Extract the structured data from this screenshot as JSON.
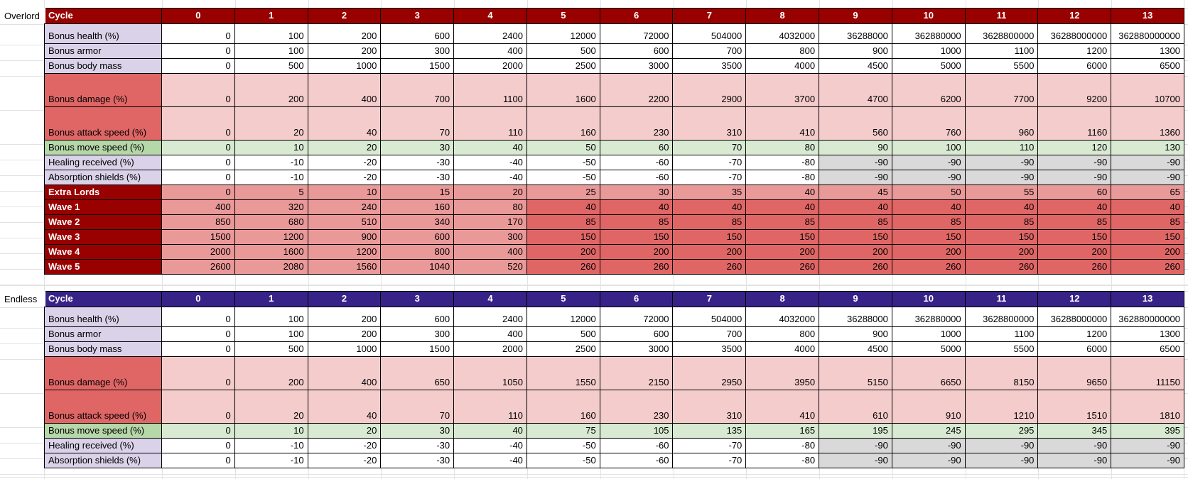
{
  "header_label": "Cycle",
  "cycles": [
    "0",
    "1",
    "2",
    "3",
    "4",
    "5",
    "6",
    "7",
    "8",
    "9",
    "10",
    "11",
    "12",
    "13"
  ],
  "colors": {
    "overlord_header": "#990000",
    "endless_header": "#372387",
    "label_lavender": "#d9d2e9",
    "label_red": "#e06666",
    "cell_pink": "#f4cccc",
    "label_green": "#b6d7a8",
    "cell_green": "#d9ead3",
    "cell_gray": "#d9d9d9",
    "label_dark_red": "#990000",
    "cell_wave": "#ea9999",
    "cell_wave_cap": "#e06666",
    "cell_white": "#ffffff",
    "gridline": "#e2e2e2"
  },
  "tables": [
    {
      "section": "Overlord",
      "theme": "red",
      "rows": [
        {
          "label": "Bonus health (%)",
          "type": "plain",
          "size": "medium",
          "values": [
            0,
            100,
            200,
            600,
            2400,
            12000,
            72000,
            504000,
            4032000,
            36288000,
            362880000,
            3628800000,
            36288000000,
            362880000000
          ]
        },
        {
          "label": "Bonus armor",
          "type": "plain",
          "size": "normal",
          "values": [
            0,
            100,
            200,
            300,
            400,
            500,
            600,
            700,
            800,
            900,
            1000,
            1100,
            1200,
            1300
          ]
        },
        {
          "label": "Bonus body mass",
          "type": "plain",
          "size": "normal",
          "values": [
            0,
            500,
            1000,
            1500,
            2000,
            2500,
            3000,
            3500,
            4000,
            4500,
            5000,
            5500,
            6000,
            6500
          ]
        },
        {
          "label": "Bonus damage (%)",
          "type": "red",
          "size": "tall",
          "values": [
            0,
            200,
            400,
            700,
            1100,
            1600,
            2200,
            2900,
            3700,
            4700,
            6200,
            7700,
            9200,
            10700
          ]
        },
        {
          "label": "Bonus attack speed (%)",
          "type": "red",
          "size": "tall",
          "values": [
            0,
            20,
            40,
            70,
            110,
            160,
            230,
            310,
            410,
            560,
            760,
            960,
            1160,
            1360
          ]
        },
        {
          "label": "Bonus move speed (%)",
          "type": "green",
          "size": "normal",
          "values": [
            0,
            10,
            20,
            30,
            40,
            50,
            60,
            70,
            80,
            90,
            100,
            110,
            120,
            130
          ]
        },
        {
          "label": "Healing received (%)",
          "type": "plain",
          "size": "normal",
          "gray_from": 9,
          "values": [
            0,
            -10,
            -20,
            -30,
            -40,
            -50,
            -60,
            -70,
            -80,
            -90,
            -90,
            -90,
            -90,
            -90
          ]
        },
        {
          "label": "Absorption shields (%)",
          "type": "plain",
          "size": "normal",
          "gray_from": 9,
          "values": [
            0,
            -10,
            -20,
            -30,
            -40,
            -50,
            -60,
            -70,
            -80,
            -90,
            -90,
            -90,
            -90,
            -90
          ]
        },
        {
          "label": "Extra Lords",
          "type": "lords",
          "size": "normal",
          "values": [
            0,
            5,
            10,
            15,
            20,
            25,
            30,
            35,
            40,
            45,
            50,
            55,
            60,
            65
          ]
        },
        {
          "label": "Wave 1",
          "type": "wave",
          "size": "normal",
          "cap_from": 5,
          "values": [
            400,
            320,
            240,
            160,
            80,
            40,
            40,
            40,
            40,
            40,
            40,
            40,
            40,
            40
          ]
        },
        {
          "label": "Wave 2",
          "type": "wave",
          "size": "normal",
          "cap_from": 5,
          "values": [
            850,
            680,
            510,
            340,
            170,
            85,
            85,
            85,
            85,
            85,
            85,
            85,
            85,
            85
          ]
        },
        {
          "label": "Wave 3",
          "type": "wave",
          "size": "normal",
          "cap_from": 5,
          "values": [
            1500,
            1200,
            900,
            600,
            300,
            150,
            150,
            150,
            150,
            150,
            150,
            150,
            150,
            150
          ]
        },
        {
          "label": "Wave 4",
          "type": "wave",
          "size": "normal",
          "cap_from": 5,
          "values": [
            2000,
            1600,
            1200,
            800,
            400,
            200,
            200,
            200,
            200,
            200,
            200,
            200,
            200,
            200
          ]
        },
        {
          "label": "Wave 5",
          "type": "wave",
          "size": "normal",
          "cap_from": 5,
          "values": [
            2600,
            2080,
            1560,
            1040,
            520,
            260,
            260,
            260,
            260,
            260,
            260,
            260,
            260,
            260
          ]
        }
      ]
    },
    {
      "section": "Endless",
      "theme": "purple",
      "rows": [
        {
          "label": "Bonus health (%)",
          "type": "plain",
          "size": "medium",
          "values": [
            0,
            100,
            200,
            600,
            2400,
            12000,
            72000,
            504000,
            4032000,
            36288000,
            362880000,
            3628800000,
            36288000000,
            362880000000
          ]
        },
        {
          "label": "Bonus armor",
          "type": "plain",
          "size": "normal",
          "values": [
            0,
            100,
            200,
            300,
            400,
            500,
            600,
            700,
            800,
            900,
            1000,
            1100,
            1200,
            1300
          ]
        },
        {
          "label": "Bonus body mass",
          "type": "plain",
          "size": "normal",
          "values": [
            0,
            500,
            1000,
            1500,
            2000,
            2500,
            3000,
            3500,
            4000,
            4500,
            5000,
            5500,
            6000,
            6500
          ]
        },
        {
          "label": "Bonus damage (%)",
          "type": "red",
          "size": "tall",
          "values": [
            0,
            200,
            400,
            650,
            1050,
            1550,
            2150,
            2950,
            3950,
            5150,
            6650,
            8150,
            9650,
            11150
          ]
        },
        {
          "label": "Bonus attack speed (%)",
          "type": "red",
          "size": "tall",
          "values": [
            0,
            20,
            40,
            70,
            110,
            160,
            230,
            310,
            410,
            610,
            910,
            1210,
            1510,
            1810
          ]
        },
        {
          "label": "Bonus move speed (%)",
          "type": "green",
          "size": "normal",
          "values": [
            0,
            10,
            20,
            30,
            40,
            75,
            105,
            135,
            165,
            195,
            245,
            295,
            345,
            395
          ]
        },
        {
          "label": "Healing received (%)",
          "type": "plain",
          "size": "normal",
          "gray_from": 9,
          "values": [
            0,
            -10,
            -20,
            -30,
            -40,
            -50,
            -60,
            -70,
            -80,
            -90,
            -90,
            -90,
            -90,
            -90
          ]
        },
        {
          "label": "Absorption shields (%)",
          "type": "plain",
          "size": "normal",
          "gray_from": 9,
          "values": [
            0,
            -10,
            -20,
            -30,
            -40,
            -50,
            -60,
            -70,
            -80,
            -90,
            -90,
            -90,
            -90,
            -90
          ]
        }
      ]
    }
  ]
}
